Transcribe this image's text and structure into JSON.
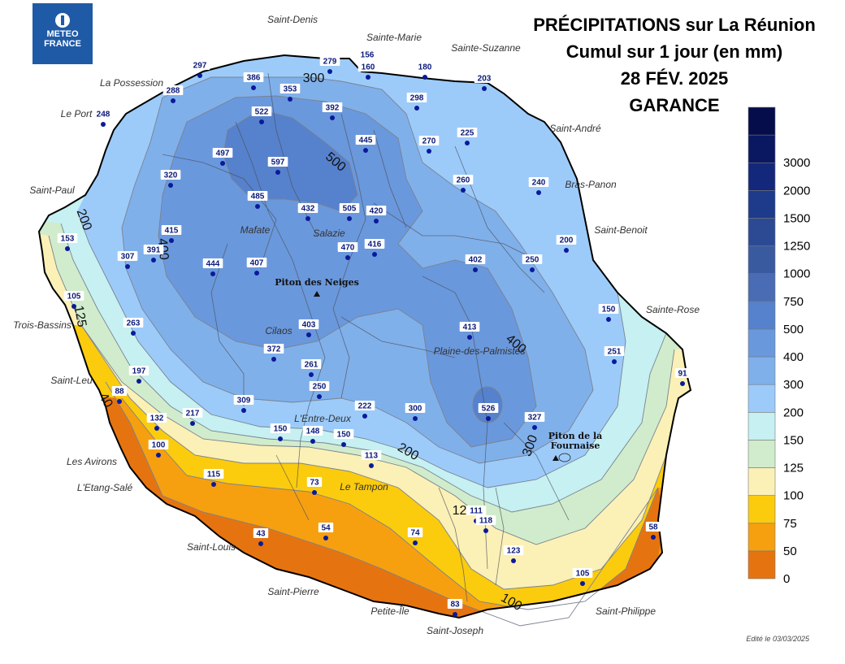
{
  "logo": {
    "line1": "METEO",
    "line2": "FRANCE"
  },
  "title": {
    "line1": "PRÉCIPITATIONS sur La Réunion",
    "line2": "Cumul sur 1 jour (en mm)",
    "line3": "28 FÉV. 2025",
    "line4": "GARANCE"
  },
  "edited": "Edité le 03/03/2025",
  "legend": {
    "levels": [
      "0",
      "50",
      "75",
      "100",
      "125",
      "150",
      "200",
      "300",
      "400",
      "500",
      "750",
      "1000",
      "1250",
      "1500",
      "2000",
      "3000"
    ],
    "colors": [
      "#e57410",
      "#f6a010",
      "#fbcb0e",
      "#fbf0b6",
      "#d0eccc",
      "#c6f0f2",
      "#9ccbfa",
      "#80b0ea",
      "#6a98dc",
      "#5681cc",
      "#4a6cb4",
      "#3a5aa0",
      "#2c4a94",
      "#1e3a8a",
      "#13287a",
      "#0a1862",
      "#050d4a"
    ]
  },
  "places": [
    {
      "name": "Saint-Denis"
    },
    {
      "name": "Sainte-Marie"
    },
    {
      "name": "Sainte-Suzanne"
    },
    {
      "name": "La Possession"
    },
    {
      "name": "Le Port"
    },
    {
      "name": "Saint-André"
    },
    {
      "name": "Saint-Paul"
    },
    {
      "name": "Bras-Panon"
    },
    {
      "name": "Saint-Benoit"
    },
    {
      "name": "Sainte-Rose"
    },
    {
      "name": "Trois-Bassins"
    },
    {
      "name": "Saint-Leu"
    },
    {
      "name": "Les Avirons"
    },
    {
      "name": "L'Etang-Salé"
    },
    {
      "name": "Saint-Louis"
    },
    {
      "name": "Saint-Pierre"
    },
    {
      "name": "Petite-Île"
    },
    {
      "name": "Saint-Joseph"
    },
    {
      "name": "Saint-Philippe"
    },
    {
      "name": "Le Tampon"
    },
    {
      "name": "L'Entre-Deux"
    },
    {
      "name": "Plaine-des-Palmistes"
    },
    {
      "name": "Cilaos"
    },
    {
      "name": "Mafate"
    },
    {
      "name": "Salazie"
    }
  ],
  "peaks": [
    {
      "name": "Piton des Neiges"
    },
    {
      "name": "Piton de la",
      "name2": "Fournaise"
    }
  ],
  "contour_labels": [
    "300",
    "500",
    "200",
    "400",
    "125",
    "40",
    "400",
    "200",
    "300",
    "125",
    "100"
  ],
  "stations": [
    "297",
    "386",
    "353",
    "279",
    "156",
    "160",
    "180",
    "203",
    "288",
    "248",
    "522",
    "392",
    "298",
    "497",
    "597",
    "445",
    "270",
    "225",
    "320",
    "485",
    "432",
    "505",
    "420",
    "260",
    "240",
    "415",
    "391",
    "307",
    "444",
    "407",
    "470",
    "416",
    "402",
    "250",
    "200",
    "153",
    "105",
    "263",
    "403",
    "413",
    "150",
    "372",
    "261",
    "251",
    "91",
    "197",
    "88",
    "250",
    "217",
    "309",
    "222",
    "300",
    "526",
    "327",
    "132",
    "150",
    "148",
    "150",
    "100",
    "113",
    "115",
    "73",
    "111",
    "118",
    "54",
    "43",
    "74",
    "58",
    "123",
    "105",
    "83"
  ]
}
